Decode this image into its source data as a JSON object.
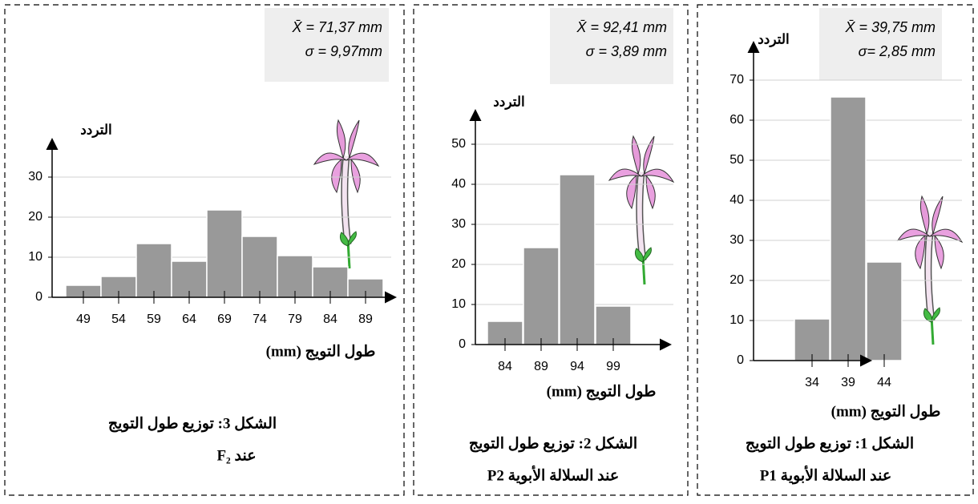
{
  "chart_data": [
    {
      "type": "bar",
      "title": "الشكل 3: توزيع طول التويج",
      "subtitle": "عند F₂",
      "annotations": [
        "X̄ = 71,37 mm",
        "σ = 9,97mm"
      ],
      "y_label": "التردد",
      "x_label": "طول التويج (mm)",
      "categories": [
        "49",
        "54",
        "59",
        "64",
        "69",
        "74",
        "79",
        "84",
        "89"
      ],
      "values": [
        3,
        5.2,
        13.4,
        9,
        21.8,
        15.2,
        10.4,
        7.6,
        4.6
      ],
      "color": "#999999",
      "ylim": [
        0,
        38
      ],
      "yticks": [
        0,
        10,
        20,
        30
      ],
      "grid": true
    },
    {
      "type": "bar",
      "title": "الشكل 2: توزيع طول التويج",
      "subtitle": "عند السلالة الأبوية P2",
      "annotations": [
        "X̄ = 92,41 mm",
        "σ = 3,89 mm"
      ],
      "y_label": "التردد",
      "x_label": "طول التويج (mm)",
      "categories": [
        "84",
        "89",
        "94",
        "99"
      ],
      "values": [
        5.8,
        24.2,
        42.4,
        9.6
      ],
      "color": "#999999",
      "ylim": [
        0,
        57
      ],
      "yticks": [
        0,
        10,
        20,
        30,
        40,
        50
      ],
      "grid": true
    },
    {
      "type": "bar",
      "title": "الشكل 1: توزيع طول التويج",
      "subtitle": "عند السلالة الأبوية P1",
      "annotations": [
        "X̄ = 39,75 mm",
        "σ= 2,85 mm"
      ],
      "y_label": "التردد",
      "x_label": "طول التويج (mm)",
      "categories": [
        "34",
        "39",
        "44"
      ],
      "values": [
        10.4,
        65.8,
        24.6
      ],
      "color": "#999999",
      "ylim": [
        0,
        78
      ],
      "yticks": [
        0,
        10,
        20,
        30,
        40,
        50,
        60,
        70
      ],
      "grid": true
    }
  ]
}
